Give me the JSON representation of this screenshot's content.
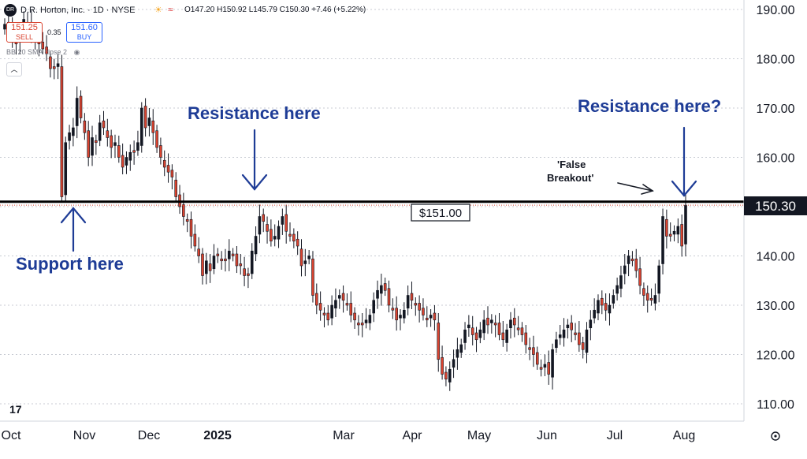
{
  "header": {
    "symbol_badge": "DR",
    "title": "D.R. Horton, Inc. · 1D · NYSE",
    "ohlc": "O147.20 H150.92 L145.79 C150.30 +7.46 (+5.22%)",
    "sell_price": "151.25",
    "sell_label": "SELL",
    "spread": "0.35",
    "buy_price": "151.60",
    "buy_label": "BUY",
    "indicator": "BB 20 SMA close 2",
    "brand": "17"
  },
  "annotations": {
    "support": "Support here",
    "resistance_1": "Resistance here",
    "resistance_2": "Resistance here?",
    "false_breakout_1": "'False",
    "false_breakout_2": "Breakout'",
    "level_label": "$151.00",
    "last_price": "150.30"
  },
  "chart_data": {
    "type": "candlestick",
    "title": "D.R. Horton, Inc. · 1D · NYSE",
    "ylim": [
      107,
      193
    ],
    "y_ticks": [
      "110.00",
      "120.00",
      "130.00",
      "140.00",
      "150.00",
      "160.00",
      "170.00",
      "180.00",
      "190.00"
    ],
    "x_ticks": [
      "Oct",
      "Nov",
      "Dec",
      "2025",
      "Mar",
      "Apr",
      "May",
      "Jun",
      "Jul",
      "Aug"
    ],
    "horizontal_level": 151.0,
    "last_price": 150.3,
    "up_color": "#131722",
    "down_color": "#d9432f",
    "closes": [
      187,
      186,
      184,
      183,
      186,
      188,
      187,
      185,
      184,
      183,
      182,
      181,
      178,
      178,
      179,
      152,
      163,
      165,
      166,
      172,
      168,
      165,
      160,
      164,
      163,
      167,
      166,
      164,
      162,
      163,
      160,
      158,
      160,
      161,
      161,
      163,
      170,
      166,
      168,
      165,
      162,
      160,
      158,
      157,
      156,
      152,
      150,
      148,
      147,
      144,
      142,
      140,
      136,
      139,
      137,
      140,
      140,
      139,
      139,
      141,
      140,
      138,
      138,
      136,
      136,
      141,
      144,
      148,
      147,
      145,
      143,
      144,
      146,
      148,
      145,
      144,
      143,
      142,
      138,
      139,
      140,
      132,
      130,
      129,
      128,
      127,
      130,
      131,
      132,
      131,
      130,
      128,
      127,
      126,
      126,
      127,
      128,
      131,
      133,
      134,
      133,
      130,
      129,
      127,
      128,
      129,
      132,
      131,
      130,
      129,
      128,
      127,
      128,
      127,
      119,
      116,
      115,
      117,
      119,
      121,
      122,
      125,
      126,
      124,
      123,
      125,
      127,
      126,
      127,
      126,
      124,
      123,
      125,
      127,
      126,
      125,
      124,
      122,
      121,
      120,
      118,
      117,
      118,
      116,
      121,
      123,
      124,
      125,
      126,
      125,
      124,
      122,
      121,
      125,
      127,
      129,
      131,
      130,
      129,
      130,
      132,
      134,
      136,
      138,
      140,
      139,
      137,
      134,
      132,
      131,
      131,
      132,
      138,
      148,
      144,
      144,
      145,
      146,
      142,
      150.3
    ]
  }
}
